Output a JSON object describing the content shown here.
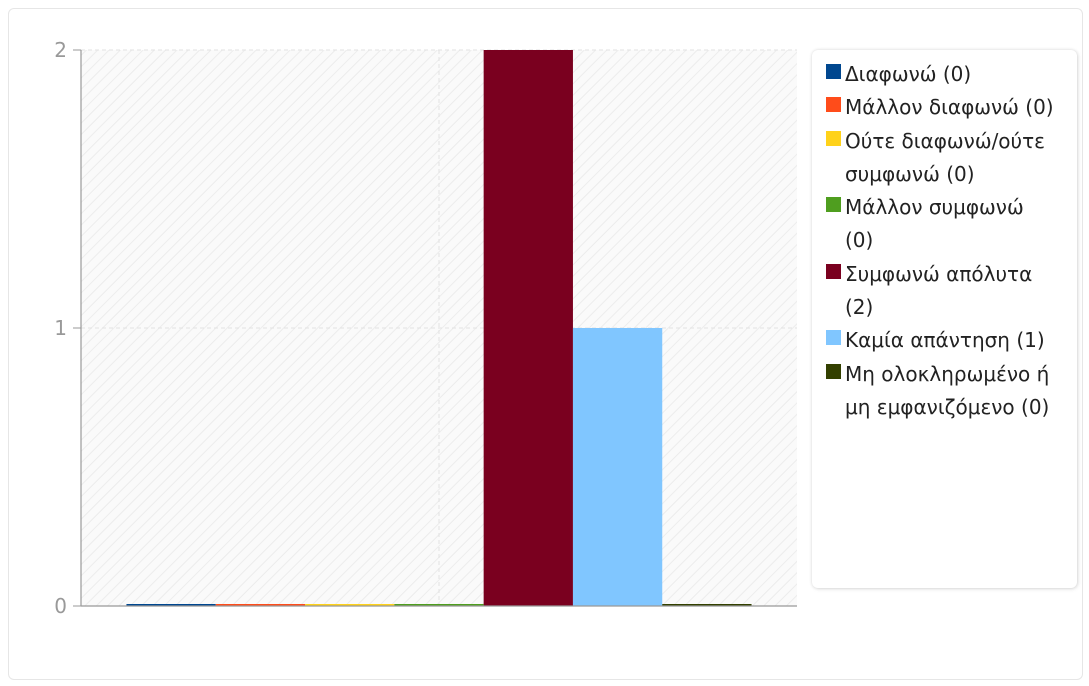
{
  "chart_data": {
    "type": "bar",
    "ylim": [
      0,
      2
    ],
    "yticks": [
      0,
      1,
      2
    ],
    "grid": true,
    "legend_position": "right",
    "series": [
      {
        "name": "Διαφωνώ (0)",
        "value": 0,
        "color": "#00478f"
      },
      {
        "name": "Μάλλον διαφωνώ (0)",
        "value": 0,
        "color": "#ff4c1a"
      },
      {
        "name": "Ούτε διαφωνώ/ούτε συμφωνώ (0)",
        "value": 0,
        "color": "#ffd21a"
      },
      {
        "name": "Μάλλον συμφωνώ (0)",
        "value": 0,
        "color": "#4f9e1f"
      },
      {
        "name": "Συμφωνώ απόλυτα (2)",
        "value": 2,
        "color": "#7a001f"
      },
      {
        "name": "Καμία απάντηση (1)",
        "value": 1,
        "color": "#80c6ff"
      },
      {
        "name": "Μη ολοκληρωμένο ή μη εμφανιζόμενο (0)",
        "value": 0,
        "color": "#334000"
      }
    ]
  }
}
